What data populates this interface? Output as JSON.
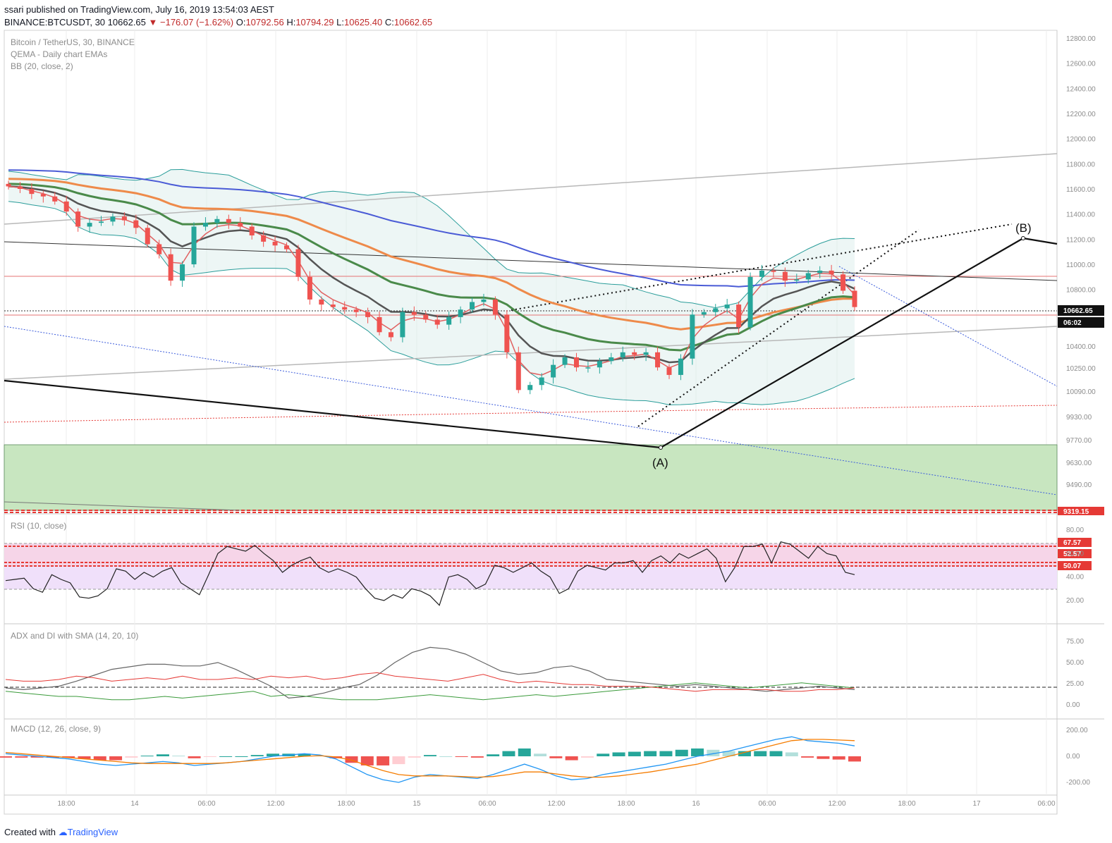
{
  "header": {
    "line1": "ssari published on TradingView.com, July 16, 2019 13:54:03 AEST",
    "symbol_interval": "BINANCE:BTCUSDT, 30",
    "last": "10662.65",
    "change": "▼ −176.07 (−1.62%)",
    "o_label": "O:",
    "o": "10792.56",
    "h_label": "H:",
    "h": "10794.29",
    "l_label": "L:",
    "l": "10625.40",
    "c_label": "C:",
    "c": "10662.65"
  },
  "legend": {
    "title": "Bitcoin / TetherUS, 30, BINANCE",
    "ema": "QEMA - Daily chart EMAs",
    "bb": "BB (20, close, 2)",
    "rsi": "RSI (10, close)",
    "adx": "ADX and DI with SMA (14, 20, 10)",
    "macd": "MACD (12, 26, close, 9)"
  },
  "footer": {
    "prefix": "Created with",
    "brand": "TradingView"
  },
  "annotations": {
    "wave_a": "(A)",
    "wave_b": "(B)"
  },
  "price_labels": {
    "last": "10662.65",
    "countdown": "06:02",
    "support": "9319.15"
  },
  "rsi_labels": [
    "67.57",
    "52.57",
    "50.07"
  ],
  "colors": {
    "up": "#26a69a",
    "down": "#ef5350",
    "ema_blue": "#4a5bd6",
    "ema_orange": "#ee8a4a",
    "ema_green": "#4a8a4a",
    "ema_dark": "#555555",
    "bb": "#2a9d9a",
    "support_zone": "#c8e6c0",
    "rsi_band": "#f0e0fa",
    "rsi_band_upper": "#f8d0e0",
    "rsi_line": "#222222"
  },
  "chart_data": [
    {
      "type": "candlestick",
      "title": "Bitcoin / TetherUS, 30, BINANCE",
      "y_axis_ticks": [
        "12800.00",
        "12600.00",
        "12400.00",
        "12200.00",
        "12000.00",
        "11800.00",
        "11600.00",
        "11400.00",
        "11200.00",
        "11000.00",
        "10800.00",
        "10560.00",
        "10400.00",
        "10250.00",
        "10090.00",
        "9930.00",
        "9770.00",
        "9630.00",
        "9490.00"
      ],
      "x_axis_ticks": [
        "18:00",
        "14",
        "06:00",
        "12:00",
        "18:00",
        "15",
        "06:00",
        "12:00",
        "18:00",
        "16",
        "06:00",
        "12:00",
        "18:00",
        "17",
        "06:00"
      ],
      "overlays": [
        "QEMA - Daily chart EMAs",
        "BB (20, close, 2)"
      ],
      "close_series_approx": [
        11620,
        11600,
        11560,
        11540,
        11500,
        11420,
        11300,
        11330,
        11340,
        11380,
        11350,
        11290,
        11160,
        11080,
        10870,
        11000,
        11300,
        11330,
        11360,
        11330,
        11300,
        11230,
        11180,
        11150,
        11120,
        10900,
        10720,
        10680,
        10660,
        10640,
        10620,
        10580,
        10460,
        10420,
        10620,
        10600,
        10560,
        10520,
        10580,
        10640,
        10700,
        10720,
        10600,
        10300,
        10000,
        10040,
        10100,
        10200,
        10260,
        10180,
        10180,
        10230,
        10260,
        10300,
        10280,
        10300,
        10180,
        10120,
        10250,
        10600,
        10620,
        10650,
        10680,
        10500,
        10900,
        10950,
        10940,
        10870,
        10880,
        10930,
        10950,
        10920,
        10790,
        10660
      ],
      "support_zone": [
        9319.15,
        9770
      ]
    },
    {
      "type": "line",
      "title": "RSI (10, close)",
      "y_axis_ticks": [
        "80.00",
        "60.00",
        "40.00",
        "20.00"
      ],
      "levels": [
        67.57,
        52.57,
        50.07
      ],
      "values_approx": [
        37,
        38,
        39,
        30,
        27,
        42,
        38,
        35,
        23,
        22,
        24,
        30,
        47,
        45,
        38,
        44,
        40,
        45,
        48,
        35,
        30,
        25,
        42,
        60,
        66,
        64,
        62,
        67,
        60,
        54,
        44,
        50,
        54,
        57,
        48,
        44,
        47,
        44,
        40,
        30,
        22,
        20,
        25,
        22,
        30,
        28,
        24,
        16,
        40,
        42,
        38,
        30,
        34,
        50,
        48,
        44,
        48,
        52,
        45,
        40,
        26,
        30,
        45,
        50,
        48,
        46,
        52,
        52,
        54,
        44,
        54,
        58,
        52,
        60,
        56,
        60,
        64,
        56,
        36,
        48,
        66,
        66,
        68,
        52,
        70,
        68,
        62,
        56,
        66,
        60,
        58,
        44,
        42
      ]
    },
    {
      "type": "line",
      "title": "ADX and DI with SMA (14, 20, 10)",
      "y_axis_ticks": [
        "75.00",
        "50.00",
        "25.00",
        "0.00"
      ],
      "series": [
        {
          "name": "ADX",
          "values_approx": [
            20,
            18,
            20,
            22,
            28,
            35,
            42,
            45,
            48,
            48,
            46,
            46,
            50,
            42,
            32,
            22,
            8,
            10,
            14,
            20,
            24,
            35,
            50,
            62,
            68,
            66,
            60,
            50,
            40,
            36,
            38,
            44,
            46,
            40,
            30,
            28,
            26,
            24,
            22,
            24,
            22,
            20,
            18,
            16,
            18,
            20,
            22,
            20,
            18
          ]
        },
        {
          "name": "+DI",
          "values_approx": [
            16,
            14,
            12,
            10,
            10,
            8,
            6,
            6,
            8,
            10,
            8,
            10,
            12,
            14,
            16,
            10,
            12,
            10,
            8,
            6,
            6,
            6,
            8,
            10,
            12,
            10,
            8,
            6,
            8,
            10,
            12,
            10,
            12,
            14,
            16,
            18,
            20,
            22,
            24,
            26,
            24,
            22,
            20,
            22,
            24,
            26,
            24,
            22,
            20
          ]
        },
        {
          "name": "-DI",
          "values_approx": [
            30,
            28,
            28,
            30,
            34,
            32,
            28,
            30,
            32,
            30,
            34,
            30,
            30,
            32,
            30,
            34,
            32,
            34,
            30,
            32,
            36,
            38,
            34,
            32,
            30,
            28,
            32,
            36,
            30,
            26,
            28,
            26,
            24,
            24,
            22,
            22,
            22,
            20,
            18,
            16,
            18,
            18,
            18,
            18,
            16,
            16,
            18,
            18,
            20
          ]
        }
      ],
      "levels": [
        20
      ]
    },
    {
      "type": "bar",
      "title": "MACD (12, 26, close, 9)",
      "y_axis_ticks": [
        "200.00",
        "0.00",
        "-200.00"
      ],
      "macd_values_approx": [
        20,
        10,
        0,
        -10,
        -20,
        -40,
        -60,
        -70,
        -60,
        -50,
        -40,
        -50,
        -70,
        -60,
        -50,
        -40,
        -20,
        0,
        10,
        20,
        10,
        -20,
        -80,
        -140,
        -180,
        -200,
        -160,
        -140,
        -150,
        -160,
        -170,
        -140,
        -100,
        -60,
        -100,
        -150,
        -180,
        -170,
        -140,
        -120,
        -100,
        -80,
        -60,
        -30,
        0,
        20,
        40,
        70,
        100,
        130,
        150,
        120,
        110,
        100,
        80
      ],
      "signal_values_approx": [
        30,
        20,
        10,
        0,
        -10,
        -20,
        -30,
        -40,
        -50,
        -55,
        -55,
        -55,
        -55,
        -55,
        -50,
        -40,
        -30,
        -20,
        -10,
        0,
        5,
        -5,
        -30,
        -70,
        -110,
        -140,
        -150,
        -150,
        -150,
        -155,
        -160,
        -155,
        -140,
        -120,
        -120,
        -135,
        -150,
        -160,
        -160,
        -150,
        -135,
        -120,
        -100,
        -80,
        -60,
        -30,
        0,
        30,
        60,
        90,
        120,
        130,
        130,
        125,
        120
      ]
    }
  ]
}
